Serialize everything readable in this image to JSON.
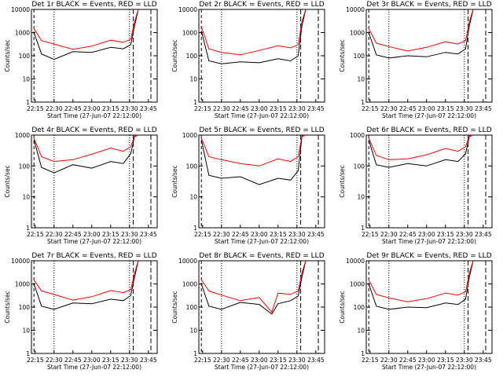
{
  "axis": {
    "xlabel": "Start Time (27-Jun-07 22:12:00)",
    "ylabel": "Counts/sec",
    "ytick_labels": [
      "1",
      "10",
      "100",
      "1000",
      "10000"
    ],
    "xtick_labels": [
      "22:15",
      "22:30",
      "22:45",
      "23:00",
      "23:15",
      "23:30",
      "23:45"
    ]
  },
  "colors": {
    "events": "#000000",
    "lld": "#ff0000"
  },
  "chart_data": [
    {
      "type": "line",
      "title": "Det 1r BLACK = Events, RED = LLD",
      "xlim": [
        "22:12",
        "23:52"
      ],
      "ylim": [
        1,
        10000
      ],
      "yscale": "log",
      "top_ytick": "10000",
      "series": [
        {
          "name": "BLACK = Events",
          "color": "#000000",
          "x": [
            "22:14",
            "22:20",
            "22:30",
            "22:45",
            "23:00",
            "23:15",
            "23:25",
            "23:31",
            "23:34",
            "23:37"
          ],
          "values": [
            1000,
            120,
            70,
            150,
            140,
            230,
            200,
            300,
            2000,
            10000
          ]
        },
        {
          "name": "RED = LLD",
          "color": "#ff0000",
          "x": [
            "22:14",
            "22:20",
            "22:30",
            "22:45",
            "23:00",
            "23:15",
            "23:25",
            "23:31",
            "23:34",
            "23:37"
          ],
          "values": [
            1500,
            450,
            320,
            190,
            260,
            470,
            380,
            520,
            3000,
            10000
          ]
        }
      ]
    },
    {
      "type": "line",
      "title": "Det 2r BLACK = Events, RED = LLD",
      "xlim": [
        "22:12",
        "23:52"
      ],
      "ylim": [
        1,
        10000
      ],
      "yscale": "log",
      "top_ytick": "10000",
      "series": [
        {
          "name": "BLACK = Events",
          "color": "#000000",
          "x": [
            "22:14",
            "22:20",
            "22:30",
            "22:45",
            "23:00",
            "23:15",
            "23:25",
            "23:31",
            "23:34",
            "23:37"
          ],
          "values": [
            1200,
            60,
            45,
            55,
            50,
            75,
            60,
            100,
            2000,
            10000
          ]
        },
        {
          "name": "RED = LLD",
          "color": "#ff0000",
          "x": [
            "22:14",
            "22:20",
            "22:30",
            "22:45",
            "23:00",
            "23:15",
            "23:25",
            "23:31",
            "23:34",
            "23:37"
          ],
          "values": [
            1800,
            200,
            140,
            110,
            170,
            270,
            220,
            300,
            3000,
            10000
          ]
        }
      ]
    },
    {
      "type": "line",
      "title": "Det 3r BLACK = Events, RED = LLD",
      "xlim": [
        "22:12",
        "23:52"
      ],
      "ylim": [
        1,
        10000
      ],
      "yscale": "log",
      "top_ytick": "10000",
      "series": [
        {
          "name": "BLACK = Events",
          "color": "#000000",
          "x": [
            "22:14",
            "22:20",
            "22:30",
            "22:45",
            "23:00",
            "23:15",
            "23:25",
            "23:31",
            "23:34",
            "23:37"
          ],
          "values": [
            1000,
            110,
            80,
            100,
            90,
            140,
            120,
            200,
            2000,
            10000
          ]
        },
        {
          "name": "RED = LLD",
          "color": "#ff0000",
          "x": [
            "22:14",
            "22:20",
            "22:30",
            "22:45",
            "23:00",
            "23:15",
            "23:25",
            "23:31",
            "23:34",
            "23:37"
          ],
          "values": [
            1500,
            350,
            250,
            160,
            230,
            400,
            320,
            450,
            3000,
            10000
          ]
        }
      ]
    },
    {
      "type": "line",
      "title": "Det 4r BLACK = Events, RED = LLD",
      "xlim": [
        "22:12",
        "23:52"
      ],
      "ylim": [
        1,
        1000
      ],
      "yscale": "log",
      "top_ytick": "1000",
      "series": [
        {
          "name": "BLACK = Events",
          "color": "#000000",
          "x": [
            "22:14",
            "22:20",
            "22:30",
            "22:45",
            "23:00",
            "23:15",
            "23:25",
            "23:31",
            "23:34",
            "23:37"
          ],
          "values": [
            700,
            90,
            60,
            110,
            85,
            140,
            120,
            250,
            900,
            1000
          ]
        },
        {
          "name": "RED = LLD",
          "color": "#ff0000",
          "x": [
            "22:14",
            "22:20",
            "22:30",
            "22:45",
            "23:00",
            "23:15",
            "23:25",
            "23:31",
            "23:34",
            "23:37"
          ],
          "values": [
            800,
            200,
            140,
            160,
            240,
            380,
            300,
            420,
            950,
            1000
          ]
        }
      ]
    },
    {
      "type": "line",
      "title": "Det 5r BLACK = Events, RED = LLD",
      "xlim": [
        "22:12",
        "23:52"
      ],
      "ylim": [
        1,
        1000
      ],
      "yscale": "log",
      "top_ytick": "1000",
      "series": [
        {
          "name": "BLACK = Events",
          "color": "#000000",
          "x": [
            "22:14",
            "22:20",
            "22:30",
            "22:45",
            "23:00",
            "23:15",
            "23:25",
            "23:31",
            "23:34",
            "23:37"
          ],
          "values": [
            700,
            50,
            40,
            45,
            25,
            40,
            35,
            70,
            900,
            1000
          ]
        },
        {
          "name": "RED = LLD",
          "color": "#ff0000",
          "x": [
            "22:14",
            "22:20",
            "22:30",
            "22:45",
            "23:00",
            "23:15",
            "23:25",
            "23:31",
            "23:34",
            "23:37"
          ],
          "values": [
            800,
            200,
            160,
            120,
            100,
            170,
            140,
            200,
            950,
            1000
          ]
        }
      ]
    },
    {
      "type": "line",
      "title": "Det 6r BLACK = Events, RED = LLD",
      "xlim": [
        "22:12",
        "23:52"
      ],
      "ylim": [
        1,
        1000
      ],
      "yscale": "log",
      "top_ytick": "1000",
      "series": [
        {
          "name": "BLACK = Events",
          "color": "#000000",
          "x": [
            "22:14",
            "22:20",
            "22:30",
            "22:45",
            "23:00",
            "23:15",
            "23:25",
            "23:31",
            "23:34",
            "23:37"
          ],
          "values": [
            700,
            110,
            90,
            120,
            100,
            160,
            140,
            250,
            900,
            1000
          ]
        },
        {
          "name": "RED = LLD",
          "color": "#ff0000",
          "x": [
            "22:14",
            "22:20",
            "22:30",
            "22:45",
            "23:00",
            "23:15",
            "23:25",
            "23:31",
            "23:34",
            "23:37"
          ],
          "values": [
            800,
            220,
            160,
            170,
            230,
            370,
            300,
            420,
            950,
            1000
          ]
        }
      ]
    },
    {
      "type": "line",
      "title": "Det 7r BLACK = Events, RED = LLD",
      "xlim": [
        "22:12",
        "23:52"
      ],
      "ylim": [
        1,
        10000
      ],
      "yscale": "log",
      "top_ytick": "10000",
      "series": [
        {
          "name": "BLACK = Events",
          "color": "#000000",
          "x": [
            "22:14",
            "22:20",
            "22:30",
            "22:45",
            "23:00",
            "23:15",
            "23:25",
            "23:31",
            "23:34",
            "23:37"
          ],
          "values": [
            1000,
            110,
            80,
            150,
            140,
            220,
            190,
            320,
            2000,
            10000
          ]
        },
        {
          "name": "RED = LLD",
          "color": "#ff0000",
          "x": [
            "22:14",
            "22:20",
            "22:30",
            "22:45",
            "23:00",
            "23:15",
            "23:25",
            "23:31",
            "23:34",
            "23:37"
          ],
          "values": [
            1500,
            500,
            350,
            200,
            280,
            520,
            420,
            560,
            3000,
            10000
          ]
        }
      ]
    },
    {
      "type": "line",
      "title": "Det 8r BLACK = Events, RED = LLD",
      "xlim": [
        "22:12",
        "23:52"
      ],
      "ylim": [
        1,
        10000
      ],
      "yscale": "log",
      "top_ytick": "10000",
      "series": [
        {
          "name": "BLACK = Events",
          "color": "#000000",
          "x": [
            "22:14",
            "22:20",
            "22:30",
            "22:45",
            "23:00",
            "23:10",
            "23:15",
            "23:25",
            "23:31",
            "23:34",
            "23:37"
          ],
          "values": [
            1000,
            110,
            80,
            160,
            130,
            50,
            140,
            190,
            300,
            2000,
            10000
          ]
        },
        {
          "name": "RED = LLD",
          "color": "#ff0000",
          "x": [
            "22:14",
            "22:20",
            "22:30",
            "22:45",
            "23:00",
            "23:10",
            "23:15",
            "23:25",
            "23:31",
            "23:34",
            "23:37"
          ],
          "values": [
            1500,
            500,
            330,
            190,
            260,
            60,
            400,
            350,
            500,
            3000,
            10000
          ]
        }
      ]
    },
    {
      "type": "line",
      "title": "Det 9r BLACK = Events, RED = LLD",
      "xlim": [
        "22:12",
        "23:52"
      ],
      "ylim": [
        1,
        10000
      ],
      "yscale": "log",
      "top_ytick": "10000",
      "series": [
        {
          "name": "BLACK = Events",
          "color": "#000000",
          "x": [
            "22:14",
            "22:20",
            "22:30",
            "22:45",
            "23:00",
            "23:15",
            "23:25",
            "23:31",
            "23:34",
            "23:37"
          ],
          "values": [
            1000,
            110,
            80,
            100,
            95,
            150,
            130,
            220,
            2000,
            10000
          ]
        },
        {
          "name": "RED = LLD",
          "color": "#ff0000",
          "x": [
            "22:14",
            "22:20",
            "22:30",
            "22:45",
            "23:00",
            "23:15",
            "23:25",
            "23:31",
            "23:34",
            "23:37"
          ],
          "values": [
            1500,
            350,
            250,
            170,
            230,
            400,
            330,
            460,
            3000,
            10000
          ]
        }
      ]
    }
  ]
}
